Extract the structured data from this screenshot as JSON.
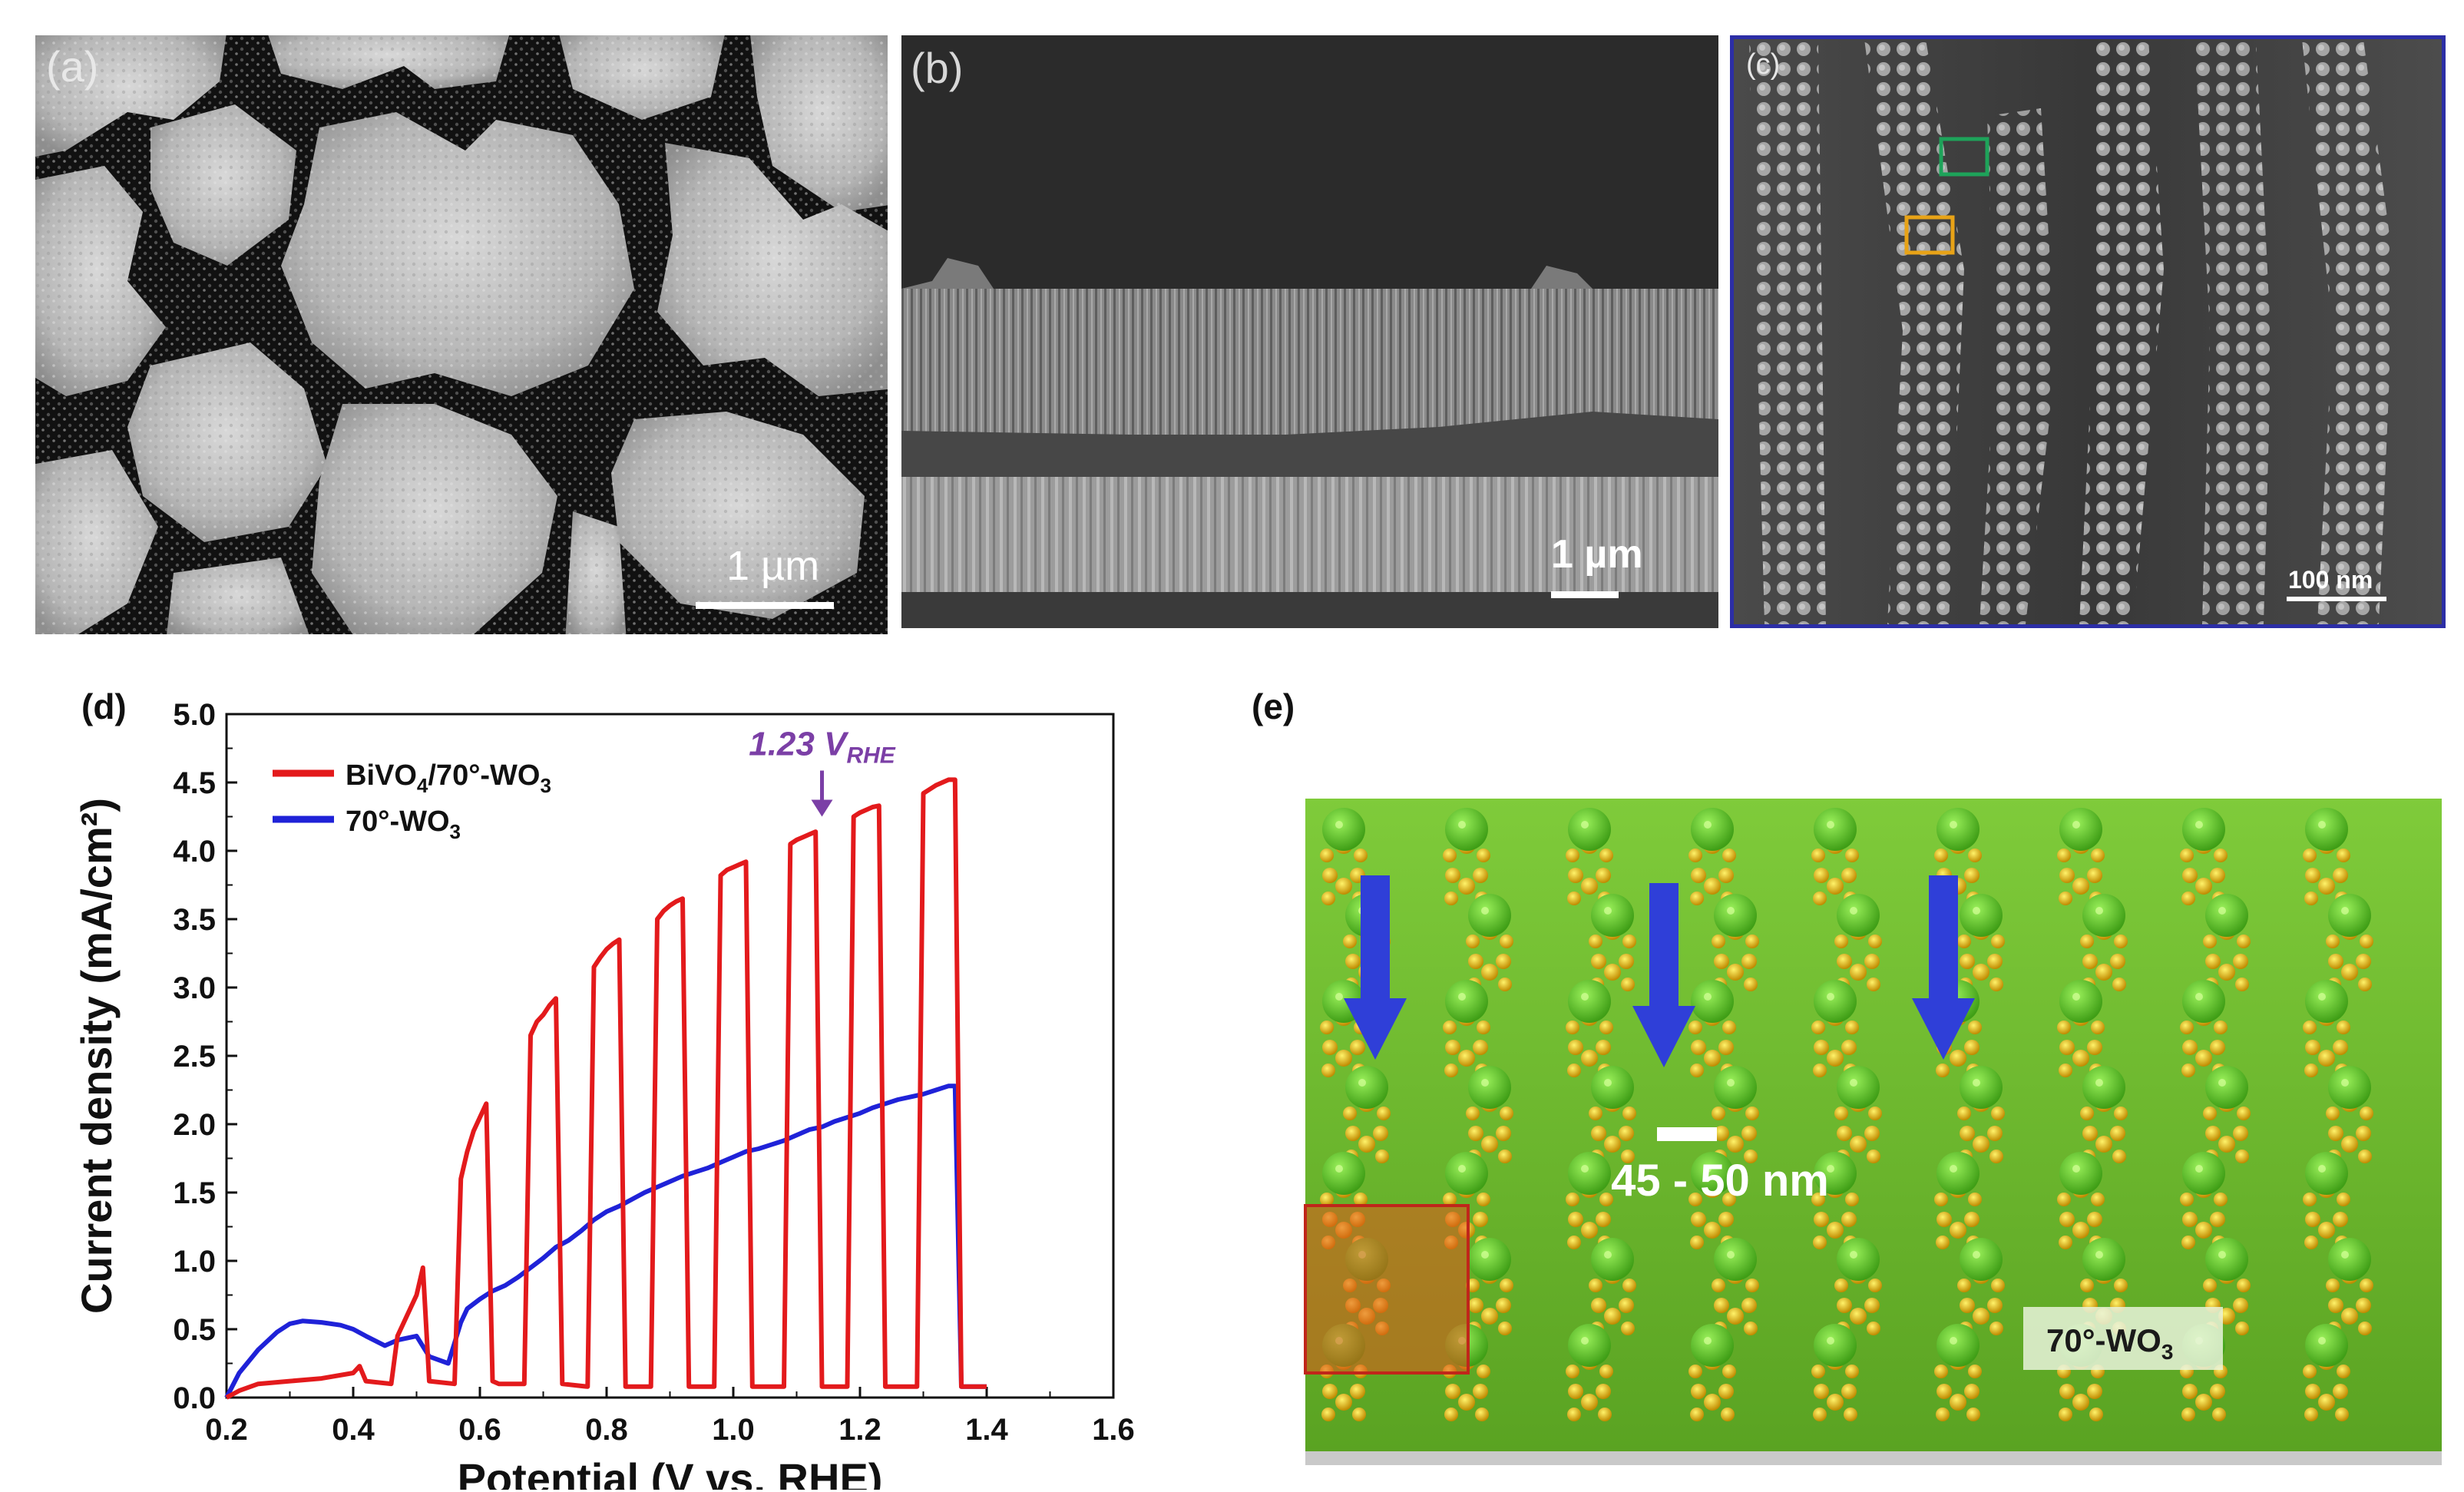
{
  "panels": {
    "a": {
      "label": "(a)",
      "scalebar": "1 µm"
    },
    "b": {
      "label": "(b)",
      "scalebar": "1 µm"
    },
    "c": {
      "label": "(c)",
      "scalebar": "100 nm"
    },
    "d": {
      "label": "(d)"
    },
    "e": {
      "label": "(e)",
      "dimension": "45 - 50 nm",
      "tag": "70°-WO",
      "tag_sub": "3"
    }
  },
  "colors": {
    "series1": "#e31a1c",
    "series2": "#1f22d8",
    "annotation": "#7b3fa6",
    "frame_c": "#2c2ea6",
    "box_green": "#1ea35a",
    "box_orange": "#e8a317",
    "substrate": "#6bbf2b",
    "arrow": "#2f3fd8"
  },
  "chart_data": {
    "type": "line",
    "xlabel": "Potential (V vs. RHE)",
    "ylabel": "Current density (mA/cm²)",
    "xlim": [
      0.2,
      1.6
    ],
    "ylim": [
      0.0,
      5.0
    ],
    "xticks": [
      "0.2",
      "0.4",
      "0.6",
      "0.8",
      "1.0",
      "1.2",
      "1.4",
      "1.6"
    ],
    "yticks": [
      "0.0",
      "0.5",
      "1.0",
      "1.5",
      "2.0",
      "2.5",
      "3.0",
      "3.5",
      "4.0",
      "4.5",
      "5.0"
    ],
    "grid": false,
    "legend_position": "top-left",
    "annotation": {
      "text": "1.23 V",
      "sub": "RHE",
      "x": 1.14,
      "y_arrow_tip": 4.25
    },
    "series": [
      {
        "name": "BiVO4/70°-WO3",
        "legend_main": "BiVO",
        "legend_sub1": "4",
        "legend_mid": "/70°-WO",
        "legend_sub2": "3",
        "x": [
          0.2,
          0.22,
          0.25,
          0.3,
          0.35,
          0.4,
          0.41,
          0.42,
          0.46,
          0.47,
          0.5,
          0.51,
          0.52,
          0.56,
          0.57,
          0.58,
          0.59,
          0.6,
          0.61,
          0.62,
          0.63,
          0.67,
          0.68,
          0.69,
          0.7,
          0.71,
          0.72,
          0.73,
          0.77,
          0.78,
          0.79,
          0.8,
          0.81,
          0.82,
          0.83,
          0.87,
          0.88,
          0.89,
          0.9,
          0.91,
          0.92,
          0.93,
          0.97,
          0.98,
          0.99,
          1.0,
          1.01,
          1.02,
          1.03,
          1.08,
          1.09,
          1.1,
          1.11,
          1.12,
          1.13,
          1.14,
          1.18,
          1.19,
          1.2,
          1.21,
          1.22,
          1.23,
          1.24,
          1.29,
          1.3,
          1.31,
          1.32,
          1.33,
          1.34,
          1.35,
          1.36,
          1.38,
          1.4
        ],
        "y": [
          0.0,
          0.05,
          0.1,
          0.12,
          0.14,
          0.18,
          0.23,
          0.12,
          0.1,
          0.45,
          0.75,
          0.95,
          0.12,
          0.1,
          1.6,
          1.8,
          1.95,
          2.05,
          2.15,
          0.12,
          0.1,
          0.1,
          2.65,
          2.75,
          2.8,
          2.87,
          2.92,
          0.1,
          0.08,
          3.15,
          3.22,
          3.28,
          3.32,
          3.35,
          0.08,
          0.08,
          3.5,
          3.56,
          3.6,
          3.63,
          3.65,
          0.08,
          0.08,
          3.82,
          3.86,
          3.88,
          3.9,
          3.92,
          0.08,
          0.08,
          4.05,
          4.08,
          4.1,
          4.12,
          4.14,
          0.08,
          0.08,
          4.25,
          4.28,
          4.3,
          4.32,
          4.33,
          0.08,
          0.08,
          4.42,
          4.45,
          4.48,
          4.5,
          4.52,
          4.52,
          0.08,
          0.08,
          0.08
        ]
      },
      {
        "name": "70°-WO3",
        "legend_main": "70°-WO",
        "legend_sub1": "3",
        "x": [
          0.2,
          0.22,
          0.25,
          0.28,
          0.3,
          0.32,
          0.35,
          0.38,
          0.4,
          0.42,
          0.45,
          0.47,
          0.5,
          0.52,
          0.55,
          0.57,
          0.58,
          0.6,
          0.62,
          0.64,
          0.66,
          0.68,
          0.7,
          0.72,
          0.74,
          0.76,
          0.78,
          0.8,
          0.82,
          0.84,
          0.86,
          0.88,
          0.9,
          0.92,
          0.94,
          0.96,
          0.98,
          1.0,
          1.02,
          1.04,
          1.06,
          1.08,
          1.1,
          1.12,
          1.14,
          1.16,
          1.18,
          1.2,
          1.22,
          1.24,
          1.26,
          1.28,
          1.3,
          1.32,
          1.34,
          1.35,
          1.36,
          1.38,
          1.4
        ],
        "y": [
          0.0,
          0.18,
          0.35,
          0.48,
          0.54,
          0.56,
          0.55,
          0.53,
          0.5,
          0.45,
          0.38,
          0.42,
          0.45,
          0.3,
          0.25,
          0.55,
          0.65,
          0.72,
          0.78,
          0.82,
          0.88,
          0.95,
          1.02,
          1.1,
          1.15,
          1.22,
          1.3,
          1.36,
          1.4,
          1.45,
          1.5,
          1.54,
          1.58,
          1.62,
          1.65,
          1.68,
          1.72,
          1.76,
          1.8,
          1.82,
          1.85,
          1.88,
          1.92,
          1.96,
          1.98,
          2.02,
          2.05,
          2.08,
          2.12,
          2.15,
          2.18,
          2.2,
          2.22,
          2.25,
          2.28,
          2.28,
          0.08,
          0.08,
          0.08
        ]
      }
    ]
  }
}
